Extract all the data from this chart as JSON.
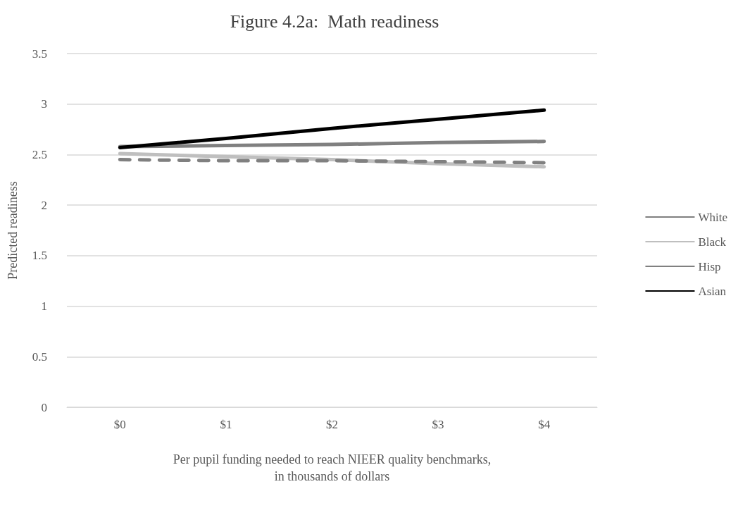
{
  "chart_data": {
    "type": "line",
    "title": "Figure 4.2a:  Math readiness",
    "xlabel": "Per pupil funding needed to reach NIEER quality benchmarks,\nin thousands of dollars",
    "ylabel": "Predicted readiness",
    "categories": [
      "$0",
      "$1",
      "$2",
      "$3",
      "$4"
    ],
    "series": [
      {
        "name": "White",
        "color": "#808080",
        "line_style": "solid",
        "values": [
          2.58,
          2.59,
          2.6,
          2.62,
          2.63
        ]
      },
      {
        "name": "Black",
        "color": "#bfbfbf",
        "line_style": "solid",
        "values": [
          2.51,
          2.48,
          2.45,
          2.41,
          2.38
        ]
      },
      {
        "name": "Hisp",
        "color": "#808080",
        "line_style": "dashed",
        "values": [
          2.45,
          2.44,
          2.44,
          2.43,
          2.42
        ]
      },
      {
        "name": "Asian",
        "color": "#000000",
        "line_style": "solid",
        "values": [
          2.57,
          2.66,
          2.76,
          2.85,
          2.94
        ]
      }
    ],
    "ylim": [
      0,
      3.5
    ],
    "yticks": [
      0,
      0.5,
      1,
      1.5,
      2,
      2.5,
      3,
      3.5
    ],
    "grid": "y",
    "legend": "right",
    "marker": "none"
  }
}
